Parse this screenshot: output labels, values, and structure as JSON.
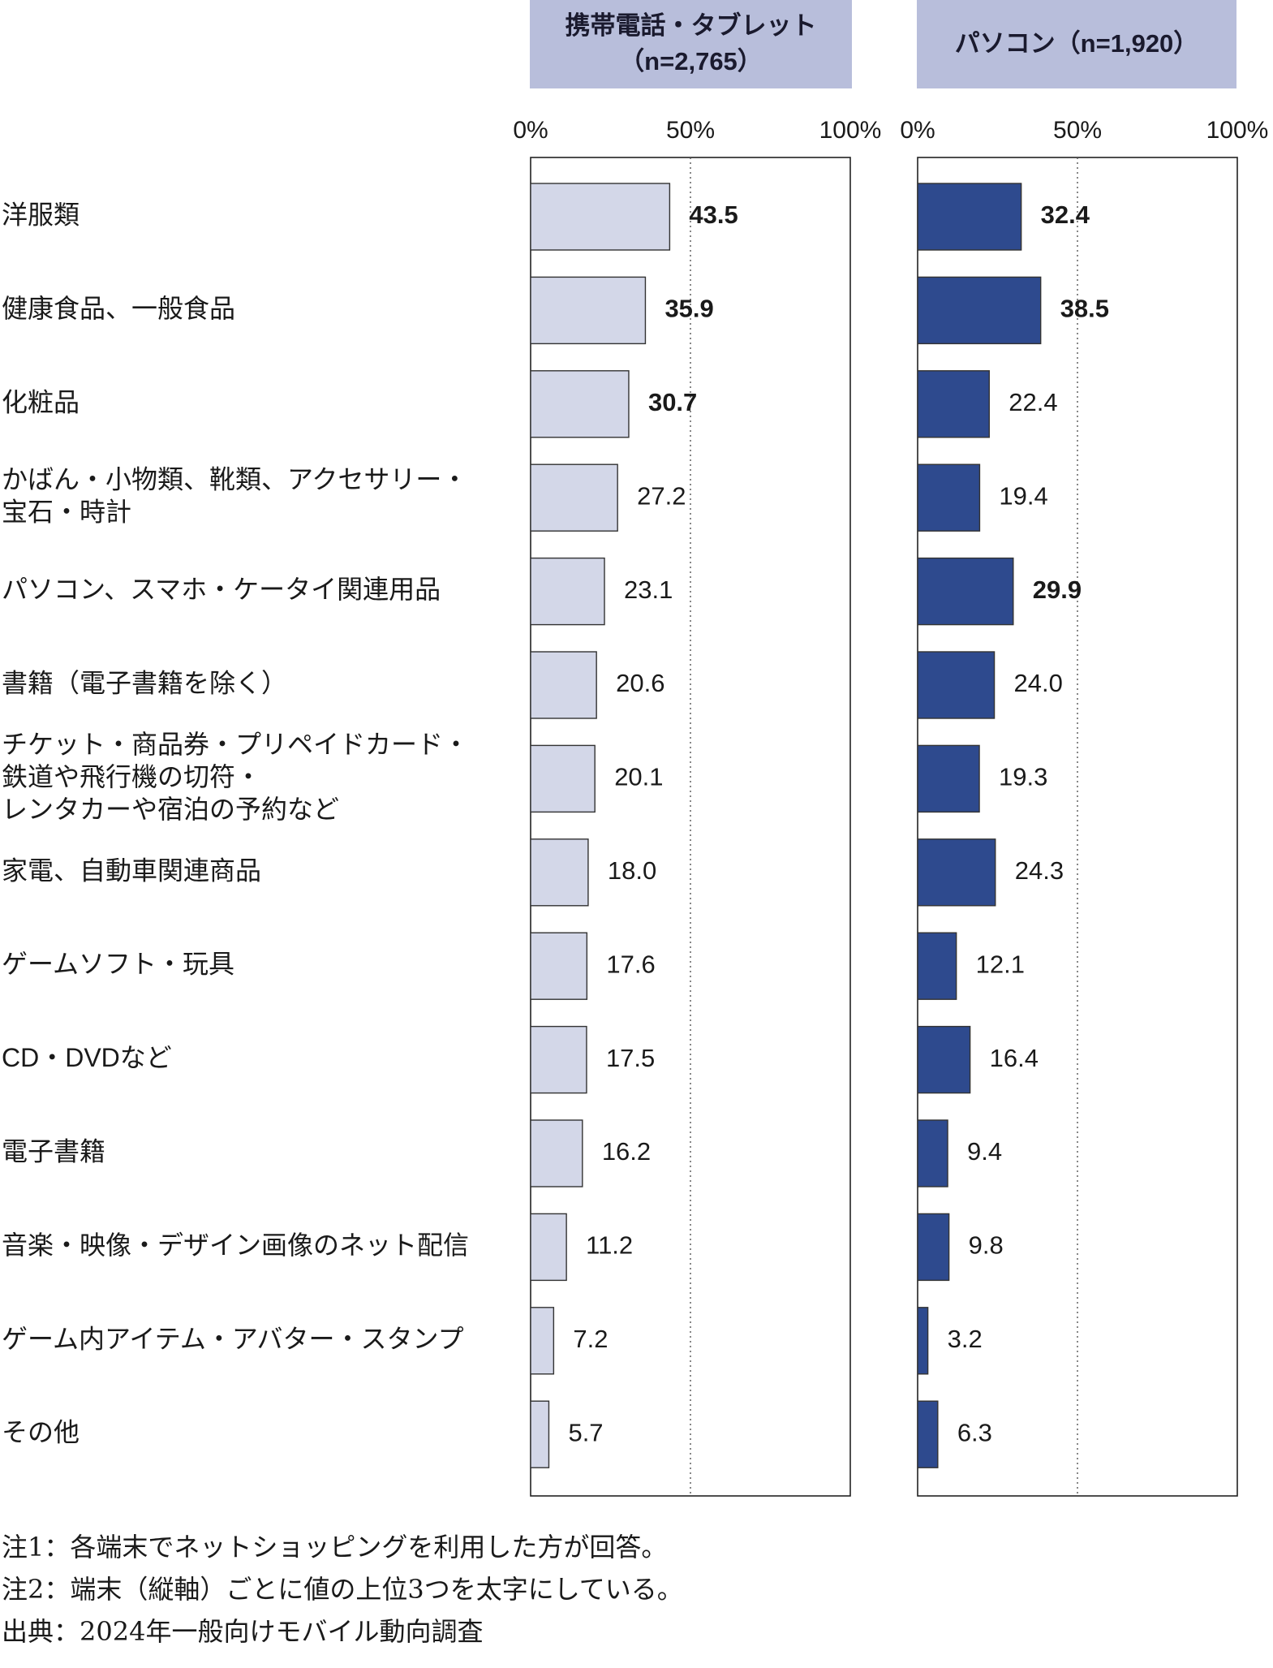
{
  "chart_data": {
    "type": "bar",
    "orientation": "horizontal",
    "categories": [
      [
        "洋服類"
      ],
      [
        "健康食品、一般食品"
      ],
      [
        "化粧品"
      ],
      [
        "かばん・小物類、靴類、アクセサリー・",
        "宝石・時計"
      ],
      [
        "パソコン、スマホ・ケータイ関連用品"
      ],
      [
        "書籍（電子書籍を除く）"
      ],
      [
        "チケット・商品券・プリペイドカード・",
        "鉄道や飛行機の切符・",
        "レンタカーや宿泊の予約など"
      ],
      [
        "家電、自動車関連商品"
      ],
      [
        "ゲームソフト・玩具"
      ],
      [
        "CD・DVDなど"
      ],
      [
        "電子書籍"
      ],
      [
        "音楽・映像・デザイン画像のネット配信"
      ],
      [
        "ゲーム内アイテム・アバター・スタンプ"
      ],
      [
        "その他"
      ]
    ],
    "panels": [
      {
        "title": "携帯電話・タブレット",
        "subtitle": "（n=2,765）",
        "values": [
          43.5,
          35.9,
          30.7,
          27.2,
          23.1,
          20.6,
          20.1,
          18.0,
          17.6,
          17.5,
          16.2,
          11.2,
          7.2,
          5.7
        ],
        "labels": [
          "43.5",
          "35.9",
          "30.7",
          "27.2",
          "23.1",
          "20.6",
          "20.1",
          "18.0",
          "17.6",
          "17.5",
          "16.2",
          "11.2",
          "7.2",
          "5.7"
        ],
        "top3": [
          0,
          1,
          2
        ],
        "color": "#d3d7e8"
      },
      {
        "title": "パソコン（n=1,920）",
        "subtitle": "",
        "values": [
          32.4,
          38.5,
          22.4,
          19.4,
          29.9,
          24.0,
          19.3,
          24.3,
          12.1,
          16.4,
          9.4,
          9.8,
          3.2,
          6.3
        ],
        "labels": [
          "32.4",
          "38.5",
          "22.4",
          "19.4",
          "29.9",
          "24.0",
          "19.3",
          "24.3",
          "12.1",
          "16.4",
          "9.4",
          "9.8",
          "3.2",
          "6.3"
        ],
        "top3": [
          0,
          1,
          4
        ],
        "color": "#2e4a8e"
      }
    ],
    "axis": {
      "ticks": [
        "0%",
        "50%",
        "100%"
      ],
      "xlim": [
        0,
        100
      ],
      "midline": 50,
      "gridline_style": "dotted"
    }
  },
  "notes": [
    "注1：各端末でネットショッピングを利用した方が回答。",
    "注2：端末（縦軸）ごとに値の上位3つを太字にしている。",
    "出典：2024年一般向けモバイル動向調査"
  ]
}
